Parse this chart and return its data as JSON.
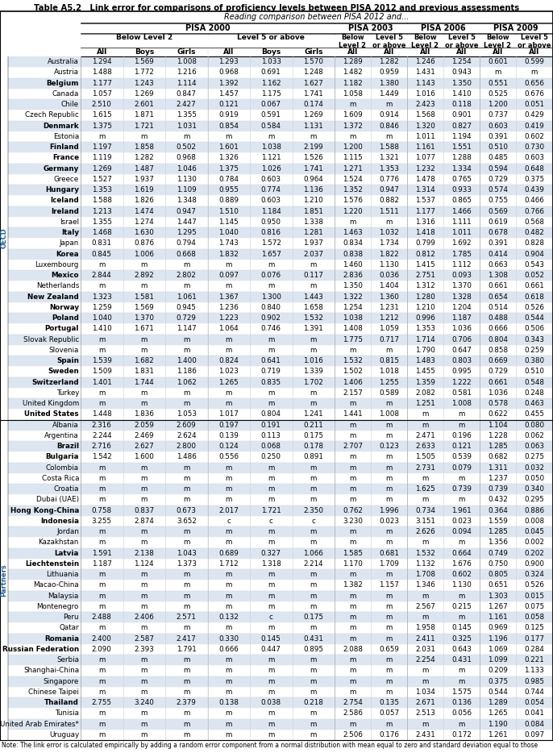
{
  "title": "Table A5.2   Link error for comparisons of proficiency levels between PISA 2012 and previous assessments",
  "subtitle": "Reading comparison between PISA 2012 and...",
  "oecd_countries": [
    "Australia",
    "Austria",
    "Belgium",
    "Canada",
    "Chile",
    "Czech Republic",
    "Denmark",
    "Estonia",
    "Finland",
    "France",
    "Germany",
    "Greece",
    "Hungary",
    "Iceland",
    "Ireland",
    "Israel",
    "Italy",
    "Japan",
    "Korea",
    "Luxembourg",
    "Mexico",
    "Netherlands",
    "New Zealand",
    "Norway",
    "Poland",
    "Portugal",
    "Slovak Republic",
    "Slovenia",
    "Spain",
    "Sweden",
    "Switzerland",
    "Turkey",
    "United Kingdom",
    "United States"
  ],
  "partner_countries": [
    "Albania",
    "Argentina",
    "Brazil",
    "Bulgaria",
    "Colombia",
    "Costa Rica",
    "Croatia",
    "Dubai (UAE)",
    "Hong Kong-China",
    "Indonesia",
    "Jordan",
    "Kazakhstan",
    "Latvia",
    "Liechtenstein",
    "Lithuania",
    "Macao-China",
    "Malaysia",
    "Montenegro",
    "Peru",
    "Qatar",
    "Romania",
    "Russian Federation",
    "Serbia",
    "Shanghai-China",
    "Singapore",
    "Chinese Taipei",
    "Thailand",
    "Tunisia",
    "United Arab Emirates*",
    "Uruguay"
  ],
  "bold_countries": [
    "Belgium",
    "Denmark",
    "Finland",
    "France",
    "Germany",
    "Hungary",
    "Iceland",
    "Ireland",
    "Italy",
    "Korea",
    "Mexico",
    "New Zealand",
    "Norway",
    "Poland",
    "Portugal",
    "Spain",
    "Sweden",
    "Switzerland",
    "United States",
    "Brazil",
    "Bulgaria",
    "Hong Kong-China",
    "Indonesia",
    "Latvia",
    "Liechtenstein",
    "Romania",
    "Russian Federation",
    "Thailand"
  ],
  "data": {
    "Australia": [
      "1.294",
      "1.569",
      "1.008",
      "1.293",
      "1.033",
      "1.570",
      "1.289",
      "1.282",
      "1.246",
      "1.254",
      "0.601",
      "0.599"
    ],
    "Austria": [
      "1.488",
      "1.772",
      "1.216",
      "0.968",
      "0.691",
      "1.248",
      "1.482",
      "0.959",
      "1.431",
      "0.943",
      "m",
      "m"
    ],
    "Belgium": [
      "1.177",
      "1.243",
      "1.114",
      "1.392",
      "1.162",
      "1.627",
      "1.182",
      "1.380",
      "1.143",
      "1.350",
      "0.551",
      "0.656"
    ],
    "Canada": [
      "1.057",
      "1.269",
      "0.847",
      "1.457",
      "1.175",
      "1.741",
      "1.058",
      "1.449",
      "1.016",
      "1.410",
      "0.525",
      "0.676"
    ],
    "Chile": [
      "2.510",
      "2.601",
      "2.427",
      "0.121",
      "0.067",
      "0.174",
      "m",
      "m",
      "2.423",
      "0.118",
      "1.200",
      "0.051"
    ],
    "Czech Republic": [
      "1.615",
      "1.871",
      "1.355",
      "0.919",
      "0.591",
      "1.269",
      "1.609",
      "0.914",
      "1.568",
      "0.901",
      "0.737",
      "0.429"
    ],
    "Denmark": [
      "1.375",
      "1.721",
      "1.031",
      "0.854",
      "0.584",
      "1.131",
      "1.372",
      "0.846",
      "1.320",
      "0.827",
      "0.603",
      "0.419"
    ],
    "Estonia": [
      "m",
      "m",
      "m",
      "m",
      "m",
      "m",
      "m",
      "m",
      "1.011",
      "1.194",
      "0.391",
      "0.602"
    ],
    "Finland": [
      "1.197",
      "1.858",
      "0.502",
      "1.601",
      "1.038",
      "2.199",
      "1.200",
      "1.588",
      "1.161",
      "1.551",
      "0.510",
      "0.730"
    ],
    "France": [
      "1.119",
      "1.282",
      "0.968",
      "1.326",
      "1.121",
      "1.526",
      "1.115",
      "1.321",
      "1.077",
      "1.288",
      "0.485",
      "0.603"
    ],
    "Germany": [
      "1.269",
      "1.487",
      "1.046",
      "1.375",
      "1.026",
      "1.741",
      "1.271",
      "1.353",
      "1.232",
      "1.334",
      "0.594",
      "0.648"
    ],
    "Greece": [
      "1.527",
      "1.937",
      "1.130",
      "0.784",
      "0.603",
      "0.964",
      "1.524",
      "0.776",
      "1.478",
      "0.765",
      "0.729",
      "0.375"
    ],
    "Hungary": [
      "1.353",
      "1.619",
      "1.109",
      "0.955",
      "0.774",
      "1.136",
      "1.352",
      "0.947",
      "1.314",
      "0.933",
      "0.574",
      "0.439"
    ],
    "Iceland": [
      "1.588",
      "1.826",
      "1.348",
      "0.889",
      "0.603",
      "1.210",
      "1.576",
      "0.882",
      "1.537",
      "0.865",
      "0.755",
      "0.466"
    ],
    "Ireland": [
      "1.213",
      "1.474",
      "0.947",
      "1.510",
      "1.184",
      "1.851",
      "1.220",
      "1.511",
      "1.177",
      "1.466",
      "0.569",
      "0.766"
    ],
    "Israel": [
      "1.355",
      "1.274",
      "1.447",
      "1.145",
      "0.950",
      "1.338",
      "m",
      "m",
      "1.316",
      "1.111",
      "0.619",
      "0.568"
    ],
    "Italy": [
      "1.468",
      "1.630",
      "1.295",
      "1.040",
      "0.816",
      "1.281",
      "1.463",
      "1.032",
      "1.418",
      "1.011",
      "0.678",
      "0.482"
    ],
    "Japan": [
      "0.831",
      "0.876",
      "0.794",
      "1.743",
      "1.572",
      "1.937",
      "0.834",
      "1.734",
      "0.799",
      "1.692",
      "0.391",
      "0.828"
    ],
    "Korea": [
      "0.845",
      "1.006",
      "0.668",
      "1.832",
      "1.657",
      "2.037",
      "0.838",
      "1.822",
      "0.812",
      "1.785",
      "0.414",
      "0.904"
    ],
    "Luxembourg": [
      "m",
      "m",
      "m",
      "m",
      "m",
      "m",
      "1.460",
      "1.130",
      "1.415",
      "1.112",
      "0.663",
      "0.543"
    ],
    "Mexico": [
      "2.844",
      "2.892",
      "2.802",
      "0.097",
      "0.076",
      "0.117",
      "2.836",
      "0.036",
      "2.751",
      "0.093",
      "1.308",
      "0.052"
    ],
    "Netherlands": [
      "m",
      "m",
      "m",
      "m",
      "m",
      "m",
      "1.350",
      "1.404",
      "1.312",
      "1.370",
      "0.661",
      "0.661"
    ],
    "New Zealand": [
      "1.323",
      "1.581",
      "1.061",
      "1.367",
      "1.300",
      "1.443",
      "1.322",
      "1.360",
      "1.280",
      "1.328",
      "0.654",
      "0.618"
    ],
    "Norway": [
      "1.259",
      "1.569",
      "0.945",
      "1.236",
      "0.840",
      "1.658",
      "1.254",
      "1.231",
      "1.210",
      "1.204",
      "0.514",
      "0.526"
    ],
    "Poland": [
      "1.040",
      "1.370",
      "0.729",
      "1.223",
      "0.902",
      "1.532",
      "1.038",
      "1.212",
      "0.996",
      "1.187",
      "0.488",
      "0.544"
    ],
    "Portugal": [
      "1.410",
      "1.671",
      "1.147",
      "1.064",
      "0.746",
      "1.391",
      "1.408",
      "1.059",
      "1.353",
      "1.036",
      "0.666",
      "0.506"
    ],
    "Slovak Republic": [
      "m",
      "m",
      "m",
      "m",
      "m",
      "m",
      "1.775",
      "0.717",
      "1.714",
      "0.706",
      "0.804",
      "0.343"
    ],
    "Slovenia": [
      "m",
      "m",
      "m",
      "m",
      "m",
      "m",
      "m",
      "m",
      "1.790",
      "0.647",
      "0.858",
      "0.259"
    ],
    "Spain": [
      "1.539",
      "1.682",
      "1.400",
      "0.824",
      "0.641",
      "1.016",
      "1.532",
      "0.815",
      "1.483",
      "0.803",
      "0.669",
      "0.380"
    ],
    "Sweden": [
      "1.509",
      "1.831",
      "1.186",
      "1.023",
      "0.719",
      "1.339",
      "1.502",
      "1.018",
      "1.455",
      "0.995",
      "0.729",
      "0.510"
    ],
    "Switzerland": [
      "1.401",
      "1.744",
      "1.062",
      "1.265",
      "0.835",
      "1.702",
      "1.406",
      "1.255",
      "1.359",
      "1.222",
      "0.661",
      "0.548"
    ],
    "Turkey": [
      "m",
      "m",
      "m",
      "m",
      "m",
      "m",
      "2.157",
      "0.589",
      "2.082",
      "0.581",
      "1.036",
      "0.248"
    ],
    "United Kingdom": [
      "m",
      "m",
      "m",
      "m",
      "m",
      "m",
      "m",
      "m",
      "1.251",
      "1.008",
      "0.578",
      "0.463"
    ],
    "United States": [
      "1.448",
      "1.836",
      "1.053",
      "1.017",
      "0.804",
      "1.241",
      "1.441",
      "1.008",
      "m",
      "m",
      "0.622",
      "0.455"
    ],
    "Albania": [
      "2.316",
      "2.059",
      "2.609",
      "0.197",
      "0.191",
      "0.211",
      "m",
      "m",
      "m",
      "m",
      "1.104",
      "0.080"
    ],
    "Argentina": [
      "2.244",
      "2.469",
      "2.624",
      "0.139",
      "0.113",
      "0.175",
      "m",
      "m",
      "2.471",
      "0.196",
      "1.228",
      "0.062"
    ],
    "Brazil": [
      "2.716",
      "2.627",
      "2.800",
      "0.124",
      "0.068",
      "0.178",
      "2.707",
      "0.123",
      "2.633",
      "0.121",
      "1.285",
      "0.063"
    ],
    "Bulgaria": [
      "1.542",
      "1.600",
      "1.486",
      "0.556",
      "0.250",
      "0.891",
      "m",
      "m",
      "1.505",
      "0.539",
      "0.682",
      "0.275"
    ],
    "Colombia": [
      "m",
      "m",
      "m",
      "m",
      "m",
      "m",
      "m",
      "m",
      "2.731",
      "0.079",
      "1.311",
      "0.032"
    ],
    "Costa Rica": [
      "m",
      "m",
      "m",
      "m",
      "m",
      "m",
      "m",
      "m",
      "m",
      "m",
      "1.237",
      "0.050"
    ],
    "Croatia": [
      "m",
      "m",
      "m",
      "m",
      "m",
      "m",
      "m",
      "m",
      "1.625",
      "0.739",
      "0.739",
      "0.340"
    ],
    "Dubai (UAE)": [
      "m",
      "m",
      "m",
      "m",
      "m",
      "m",
      "m",
      "m",
      "m",
      "m",
      "0.432",
      "0.295"
    ],
    "Hong Kong-China": [
      "0.758",
      "0.837",
      "0.673",
      "2.017",
      "1.721",
      "2.350",
      "0.762",
      "1.996",
      "0.734",
      "1.961",
      "0.364",
      "0.886"
    ],
    "Indonesia": [
      "3.255",
      "2.874",
      "3.652",
      "c",
      "c",
      "c",
      "3.230",
      "0.023",
      "3.151",
      "0.023",
      "1.559",
      "0.008"
    ],
    "Jordan": [
      "m",
      "m",
      "m",
      "m",
      "m",
      "m",
      "m",
      "m",
      "2.626",
      "0.094",
      "1.285",
      "0.045"
    ],
    "Kazakhstan": [
      "m",
      "m",
      "m",
      "m",
      "m",
      "m",
      "m",
      "m",
      "m",
      "m",
      "1.356",
      "0.002"
    ],
    "Latvia": [
      "1.591",
      "2.138",
      "1.043",
      "0.689",
      "0.327",
      "1.066",
      "1.585",
      "0.681",
      "1.532",
      "0.664",
      "0.749",
      "0.202"
    ],
    "Liechtenstein": [
      "1.187",
      "1.124",
      "1.373",
      "1.712",
      "1.318",
      "2.214",
      "1.170",
      "1.709",
      "1.132",
      "1.676",
      "0.750",
      "0.900"
    ],
    "Lithuania": [
      "m",
      "m",
      "m",
      "m",
      "m",
      "m",
      "m",
      "m",
      "1.708",
      "0.602",
      "0.805",
      "0.324"
    ],
    "Macao-China": [
      "m",
      "m",
      "m",
      "m",
      "m",
      "m",
      "1.382",
      "1.157",
      "1.346",
      "1.130",
      "0.651",
      "0.526"
    ],
    "Malaysia": [
      "m",
      "m",
      "m",
      "m",
      "m",
      "m",
      "m",
      "m",
      "m",
      "m",
      "1.303",
      "0.015"
    ],
    "Montenegro": [
      "m",
      "m",
      "m",
      "m",
      "m",
      "m",
      "m",
      "m",
      "2.567",
      "0.215",
      "1.267",
      "0.075"
    ],
    "Peru": [
      "2.488",
      "2.406",
      "2.571",
      "0.132",
      "c",
      "0.175",
      "m",
      "m",
      "m",
      "m",
      "1.161",
      "0.058"
    ],
    "Qatar": [
      "m",
      "m",
      "m",
      "m",
      "m",
      "m",
      "m",
      "m",
      "1.958",
      "0.145",
      "0.969",
      "0.125"
    ],
    "Romania": [
      "2.400",
      "2.587",
      "2.417",
      "0.330",
      "0.145",
      "0.431",
      "m",
      "m",
      "2.411",
      "0.325",
      "1.196",
      "0.177"
    ],
    "Russian Federation": [
      "2.090",
      "2.393",
      "1.791",
      "0.666",
      "0.447",
      "0.895",
      "2.088",
      "0.659",
      "2.031",
      "0.643",
      "1.069",
      "0.284"
    ],
    "Serbia": [
      "m",
      "m",
      "m",
      "m",
      "m",
      "m",
      "m",
      "m",
      "2.254",
      "0.431",
      "1.099",
      "0.221"
    ],
    "Shanghai-China": [
      "m",
      "m",
      "m",
      "m",
      "m",
      "m",
      "m",
      "m",
      "m",
      "m",
      "0.209",
      "1.133"
    ],
    "Singapore": [
      "m",
      "m",
      "m",
      "m",
      "m",
      "m",
      "m",
      "m",
      "m",
      "m",
      "0.375",
      "0.985"
    ],
    "Chinese Taipei": [
      "m",
      "m",
      "m",
      "m",
      "m",
      "m",
      "m",
      "m",
      "1.034",
      "1.575",
      "0.544",
      "0.744"
    ],
    "Thailand": [
      "2.755",
      "3.240",
      "2.379",
      "0.138",
      "0.038",
      "0.218",
      "2.754",
      "0.135",
      "2.671",
      "0.136",
      "1.289",
      "0.054"
    ],
    "Tunisia": [
      "m",
      "m",
      "m",
      "m",
      "m",
      "m",
      "2.586",
      "0.057",
      "2.513",
      "0.056",
      "1.265",
      "0.041"
    ],
    "United Arab Emirates*": [
      "m",
      "m",
      "m",
      "m",
      "m",
      "m",
      "m",
      "m",
      "m",
      "m",
      "1.190",
      "0.084"
    ],
    "Uruguay": [
      "m",
      "m",
      "m",
      "m",
      "m",
      "m",
      "2.506",
      "0.176",
      "2.431",
      "0.172",
      "1.261",
      "0.097"
    ]
  },
  "note": "Note: The link error is calculated empirically by adding a random error component from a normal distribution with mean equal to zero and standard deviation equal to those",
  "col_labels": [
    "All",
    "Boys",
    "Girls",
    "All",
    "Boys",
    "Girls",
    "All",
    "All",
    "All",
    "All",
    "All",
    "All"
  ],
  "side_oecd": "OECD",
  "side_partner": "Partners",
  "bg_blue": "#dce6f1",
  "bg_white": "#ffffff",
  "title_color": "#000000",
  "header_line_color": "#000000",
  "grid_color": "#b0b0b0",
  "light_grid": "#d0d0d0"
}
